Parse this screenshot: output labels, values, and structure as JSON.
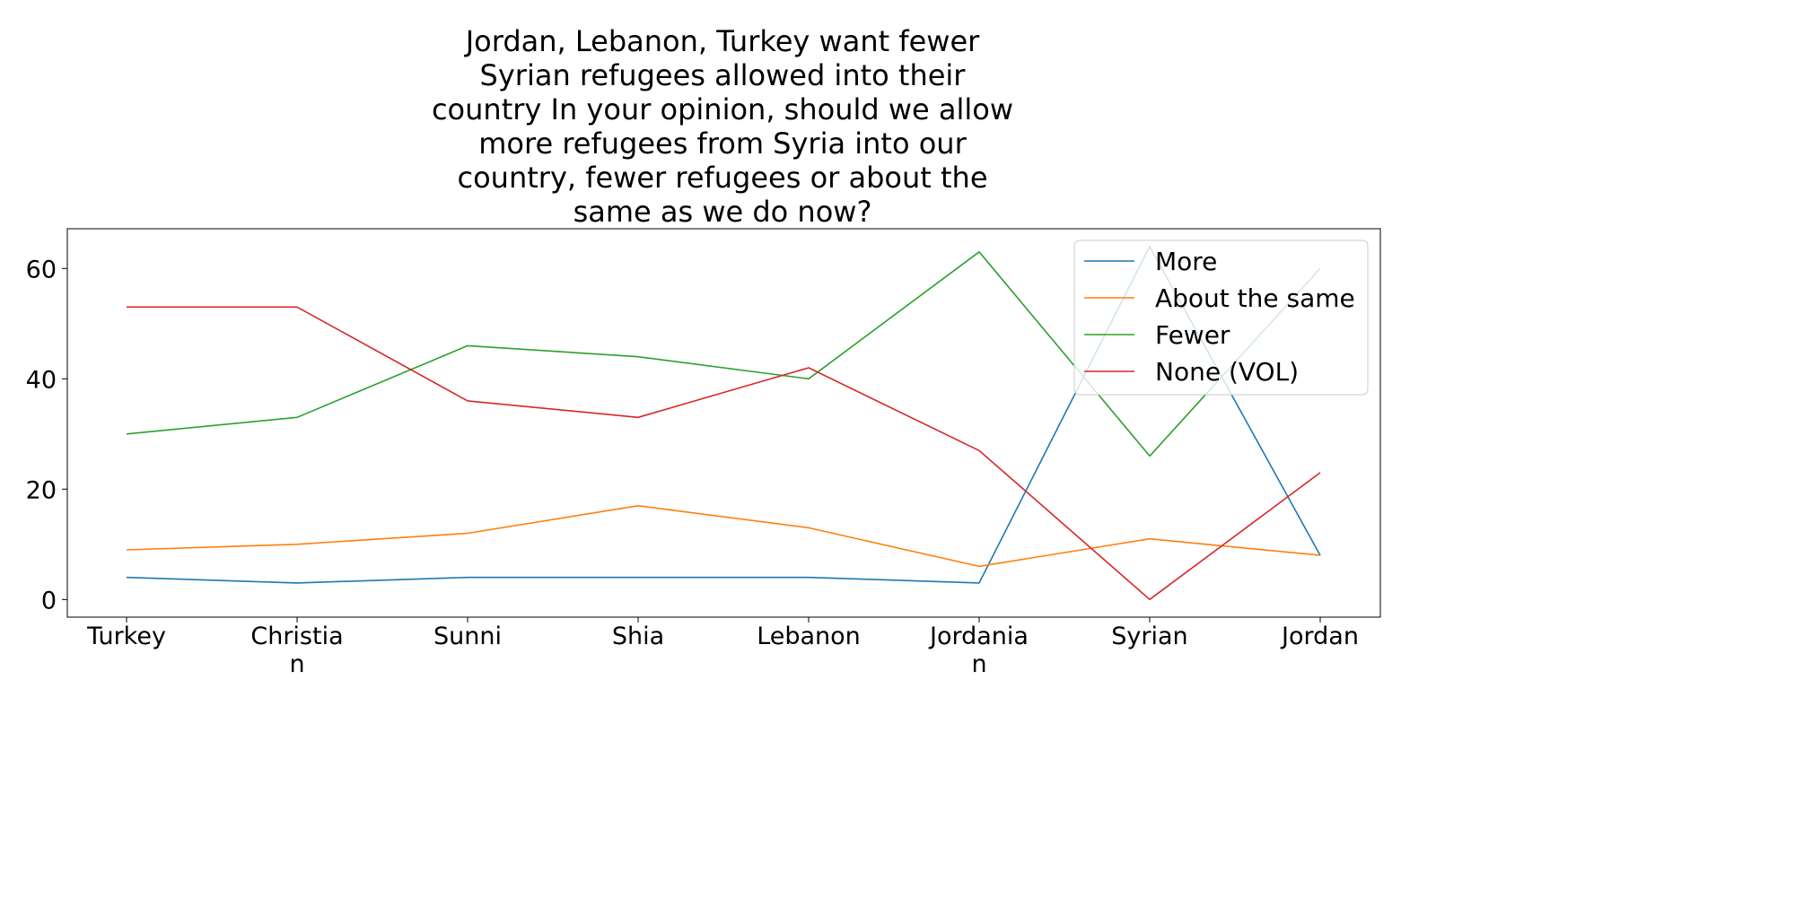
{
  "chart_data": {
    "type": "line",
    "title_lines": [
      "Jordan, Lebanon, Turkey want fewer",
      "Syrian refugees allowed into their",
      "country In your opinion, should we allow",
      "more refugees from Syria into our",
      "country, fewer refugees or about the",
      "same as we do now?"
    ],
    "categories": [
      [
        "Turkey"
      ],
      [
        "Christia",
        "n"
      ],
      [
        "Sunni"
      ],
      [
        "Shia"
      ],
      [
        "Lebanon"
      ],
      [
        "Jordania",
        "n"
      ],
      [
        "Syrian"
      ],
      [
        "Jordan"
      ]
    ],
    "series": [
      {
        "name": "More",
        "color": "#1f77b4",
        "values": [
          4,
          3,
          4,
          4,
          4,
          3,
          64,
          8
        ]
      },
      {
        "name": "About the same",
        "color": "#ff7f0e",
        "values": [
          9,
          10,
          12,
          17,
          13,
          6,
          11,
          8
        ]
      },
      {
        "name": "Fewer",
        "color": "#2ca02c",
        "values": [
          30,
          33,
          46,
          44,
          40,
          63,
          26,
          60
        ]
      },
      {
        "name": "None (VOL)",
        "color": "#d62728",
        "values": [
          53,
          53,
          36,
          33,
          42,
          27,
          0,
          23
        ]
      }
    ],
    "y_ticks": [
      0,
      20,
      40,
      60
    ],
    "ylim": [
      -3.2,
      67.2
    ],
    "grid": false,
    "legend_position": "top-right"
  }
}
